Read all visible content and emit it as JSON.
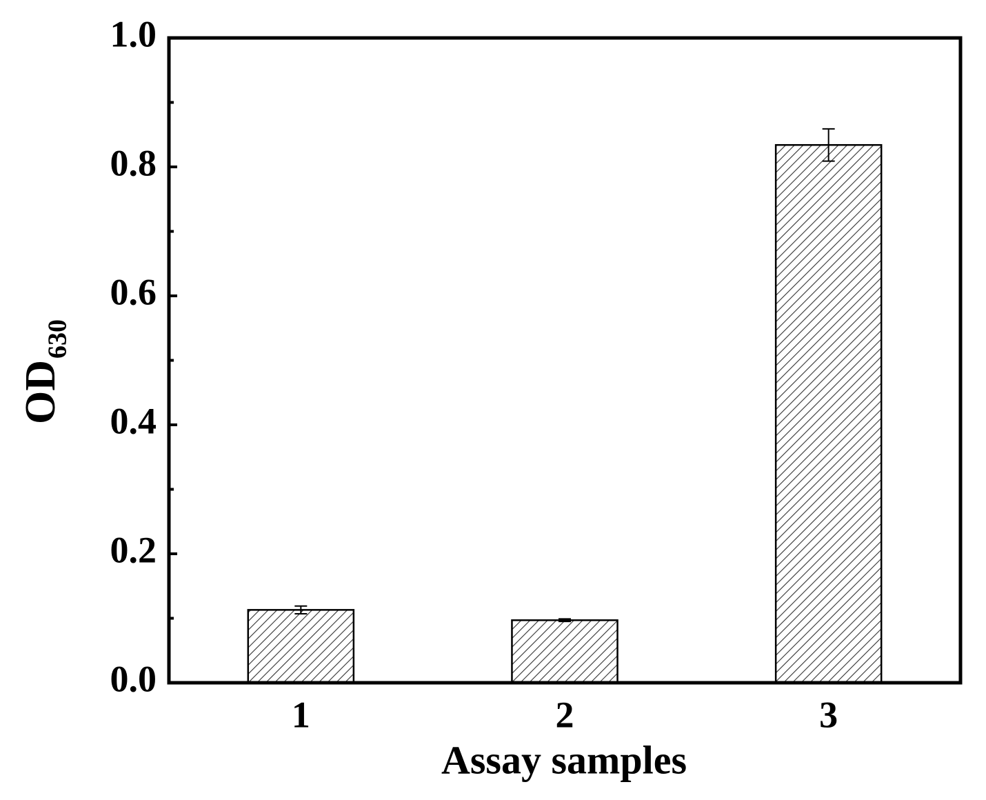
{
  "chart_data": {
    "type": "bar",
    "x_label": "Assay samples",
    "y_label": "OD",
    "y_label_subscript": "630",
    "categories": [
      "1",
      "2",
      "3"
    ],
    "values": [
      0.113,
      0.097,
      0.834
    ],
    "errors": [
      0.006,
      0.002,
      0.025
    ],
    "color": "#000000",
    "ylim": [
      0,
      1
    ],
    "yticks": [
      {
        "value": 0,
        "label": "0.0"
      },
      0.2,
      0.4,
      0.6,
      0.8,
      {
        "value": 1,
        "label": "1.0"
      }
    ],
    "yminorticks": [
      0.1,
      0.3,
      0.5,
      0.7,
      0.9
    ],
    "grid": false
  }
}
